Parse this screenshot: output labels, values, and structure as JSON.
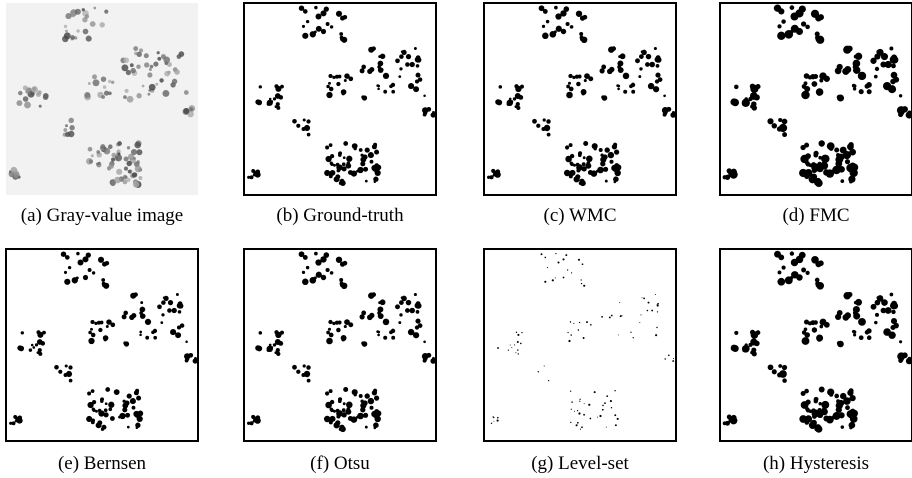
{
  "panels": [
    {
      "caption": "(a) Gray-value image"
    },
    {
      "caption": "(b) Ground-truth"
    },
    {
      "caption": "(c) WMC"
    },
    {
      "caption": "(d) FMC"
    },
    {
      "caption": "(e) Bernsen"
    },
    {
      "caption": "(f) Otsu"
    },
    {
      "caption": "(g) Level-set"
    },
    {
      "caption": "(h) Hysteresis"
    }
  ]
}
